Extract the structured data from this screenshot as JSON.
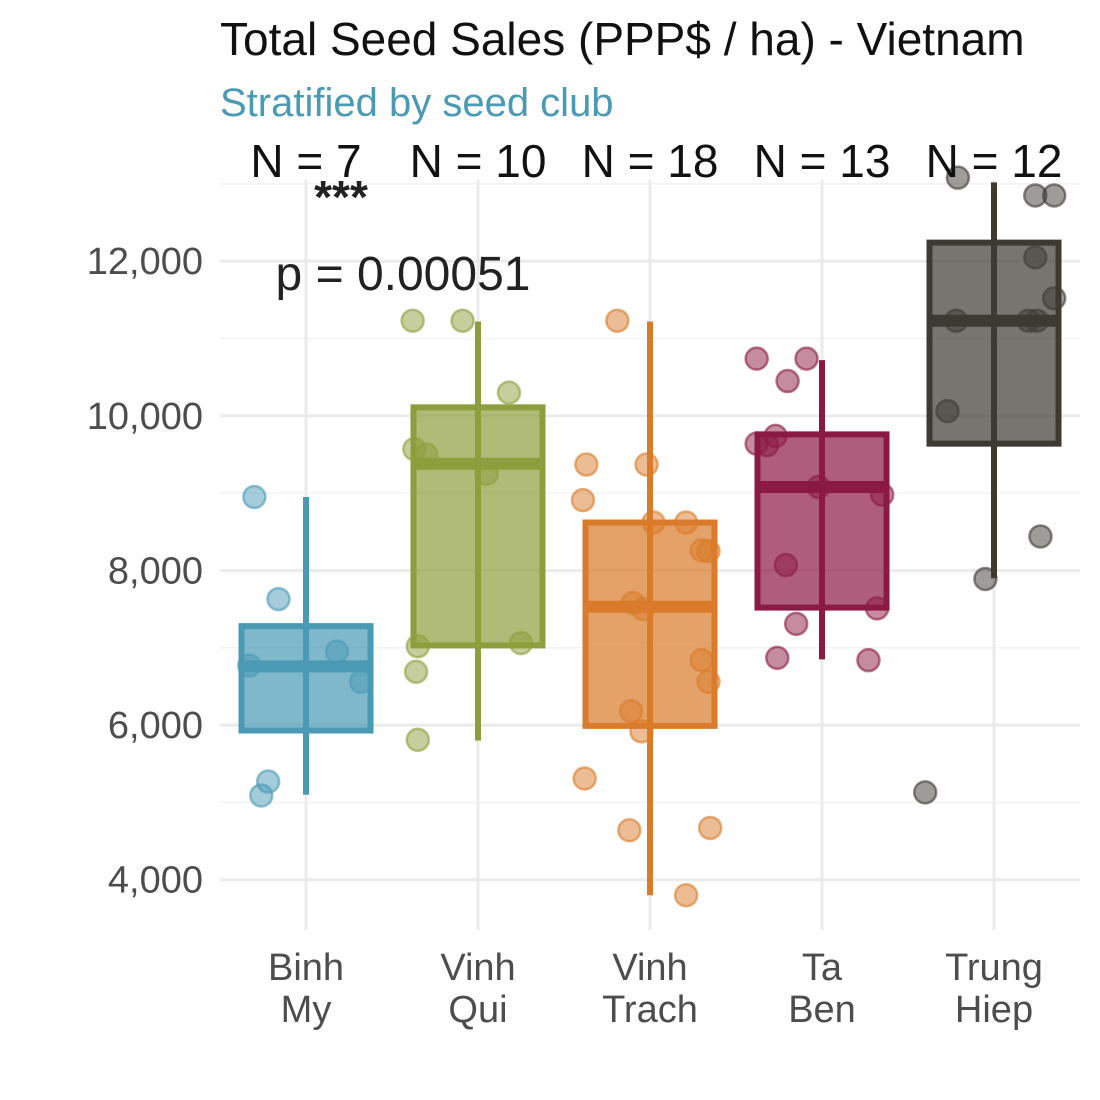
{
  "chart_data": {
    "type": "box",
    "title": "Total Seed Sales (PPP$ / ha) - Vietnam",
    "subtitle": "Stratified by seed club",
    "xlabel": "",
    "ylabel": "",
    "ylim": [
      3350,
      13050
    ],
    "yticks": [
      4000,
      6000,
      8000,
      10000,
      12000
    ],
    "ytick_labels": [
      "4,000",
      "6,000",
      "8,000",
      "10,000",
      "12,000"
    ],
    "grid": true,
    "legend": "none",
    "significance": {
      "stars": "***",
      "p_label": "p = 0.00051"
    },
    "groups": [
      {
        "category_lines": [
          "Binh",
          "My"
        ],
        "n_label": "N = 7",
        "color": "#4a9ab5",
        "box": {
          "whisker_low": 5100,
          "q1": 5930,
          "median": 6760,
          "q3": 7280,
          "whisker_high": 8950
        },
        "points": [
          {
            "offset": -0.3,
            "value": 8950
          },
          {
            "offset": -0.16,
            "value": 7630
          },
          {
            "offset": 0.18,
            "value": 6950
          },
          {
            "offset": 0.32,
            "value": 6560
          },
          {
            "offset": -0.33,
            "value": 6770
          },
          {
            "offset": -0.22,
            "value": 5270
          },
          {
            "offset": -0.26,
            "value": 5090
          }
        ]
      },
      {
        "category_lines": [
          "Vinh",
          "Qui"
        ],
        "n_label": "N = 10",
        "color": "#8d9e3c",
        "box": {
          "whisker_low": 5800,
          "q1": 7030,
          "median": 9380,
          "q3": 10110,
          "whisker_high": 11220
        },
        "points": [
          {
            "offset": -0.38,
            "value": 11230
          },
          {
            "offset": -0.09,
            "value": 11230
          },
          {
            "offset": 0.18,
            "value": 10300
          },
          {
            "offset": -0.37,
            "value": 9570
          },
          {
            "offset": -0.3,
            "value": 9500
          },
          {
            "offset": 0.05,
            "value": 9250
          },
          {
            "offset": -0.35,
            "value": 7020
          },
          {
            "offset": 0.25,
            "value": 7060
          },
          {
            "offset": -0.36,
            "value": 6690
          },
          {
            "offset": -0.35,
            "value": 5810
          }
        ]
      },
      {
        "category_lines": [
          "Vinh",
          "Trach"
        ],
        "n_label": "N = 18",
        "color": "#d97b2a",
        "box": {
          "whisker_low": 3800,
          "q1": 5990,
          "median": 7530,
          "q3": 8620,
          "whisker_high": 11220
        },
        "points": [
          {
            "offset": -0.19,
            "value": 11230
          },
          {
            "offset": -0.37,
            "value": 9370
          },
          {
            "offset": -0.02,
            "value": 9370
          },
          {
            "offset": -0.39,
            "value": 8910
          },
          {
            "offset": 0.02,
            "value": 8620
          },
          {
            "offset": 0.21,
            "value": 8620
          },
          {
            "offset": 0.3,
            "value": 8260
          },
          {
            "offset": 0.34,
            "value": 8250
          },
          {
            "offset": -0.1,
            "value": 7580
          },
          {
            "offset": -0.04,
            "value": 7500
          },
          {
            "offset": 0.3,
            "value": 6840
          },
          {
            "offset": 0.34,
            "value": 6560
          },
          {
            "offset": -0.11,
            "value": 6180
          },
          {
            "offset": -0.05,
            "value": 5920
          },
          {
            "offset": -0.38,
            "value": 5310
          },
          {
            "offset": -0.12,
            "value": 4640
          },
          {
            "offset": 0.35,
            "value": 4670
          },
          {
            "offset": 0.21,
            "value": 3800
          }
        ]
      },
      {
        "category_lines": [
          "Ta",
          "Ben"
        ],
        "n_label": "N = 13",
        "color": "#8b1a42",
        "box": {
          "whisker_low": 6850,
          "q1": 7520,
          "median": 9080,
          "q3": 9760,
          "whisker_high": 10720
        },
        "points": [
          {
            "offset": -0.38,
            "value": 10740
          },
          {
            "offset": -0.09,
            "value": 10740
          },
          {
            "offset": -0.2,
            "value": 10450
          },
          {
            "offset": -0.27,
            "value": 9740
          },
          {
            "offset": -0.38,
            "value": 9640
          },
          {
            "offset": -0.32,
            "value": 9620
          },
          {
            "offset": -0.02,
            "value": 9080
          },
          {
            "offset": 0.35,
            "value": 8980
          },
          {
            "offset": -0.21,
            "value": 8070
          },
          {
            "offset": 0.32,
            "value": 7510
          },
          {
            "offset": -0.15,
            "value": 7310
          },
          {
            "offset": -0.26,
            "value": 6870
          },
          {
            "offset": 0.27,
            "value": 6840
          }
        ]
      },
      {
        "category_lines": [
          "Trung",
          "Hiep"
        ],
        "n_label": "N = 12",
        "color": "#3d3a33",
        "box": {
          "whisker_low": 7900,
          "q1": 9640,
          "median": 11230,
          "q3": 12240,
          "whisker_high": 13020
        },
        "points": [
          {
            "offset": -0.21,
            "value": 13080
          },
          {
            "offset": 0.24,
            "value": 12850
          },
          {
            "offset": 0.35,
            "value": 12850
          },
          {
            "offset": 0.24,
            "value": 12050
          },
          {
            "offset": 0.35,
            "value": 11520
          },
          {
            "offset": -0.22,
            "value": 11230
          },
          {
            "offset": 0.2,
            "value": 11230
          },
          {
            "offset": 0.25,
            "value": 11230
          },
          {
            "offset": -0.27,
            "value": 10060
          },
          {
            "offset": 0.27,
            "value": 8440
          },
          {
            "offset": -0.05,
            "value": 7890
          },
          {
            "offset": -0.4,
            "value": 5130
          }
        ]
      }
    ]
  }
}
